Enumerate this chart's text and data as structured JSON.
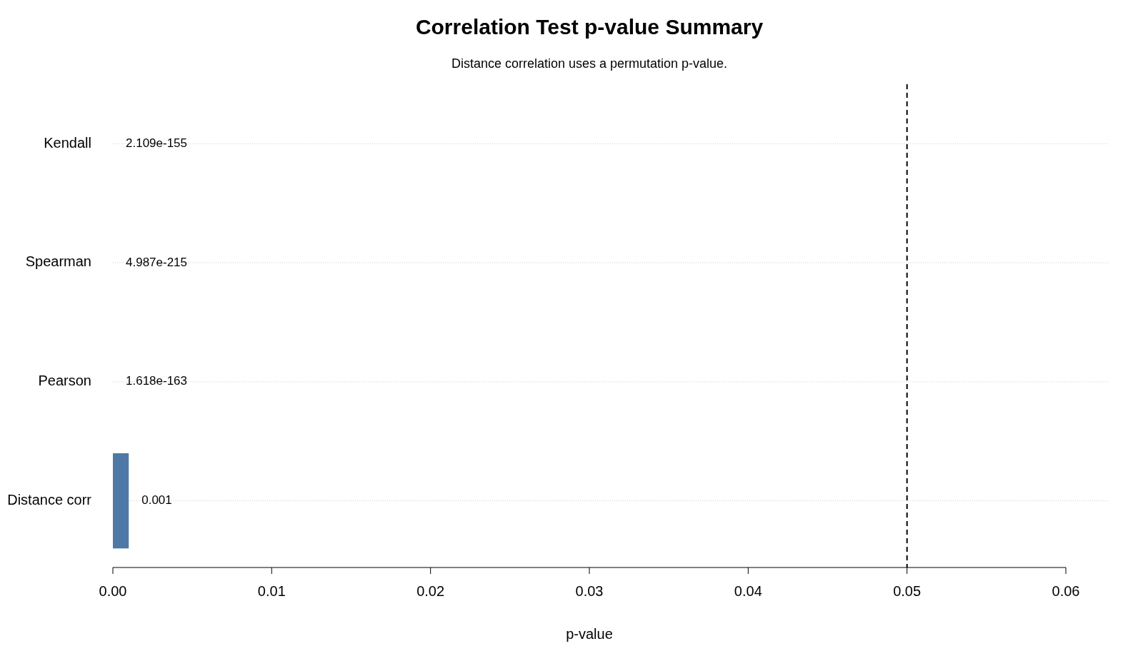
{
  "chart_data": {
    "type": "bar",
    "orientation": "horizontal",
    "title": "Correlation Test p-value Summary",
    "subtitle": "Distance correlation uses a permutation p-value.",
    "xlabel": "p-value",
    "categories": [
      "Kendall",
      "Spearman",
      "Pearson",
      "Distance corr"
    ],
    "values": [
      2.109e-155,
      4.987e-215,
      1.618e-163,
      0.001
    ],
    "value_labels": [
      "2.109e-155",
      "4.987e-215",
      "1.618e-163",
      "0.001"
    ],
    "color": "#4e79a7",
    "xlim": [
      0,
      0.06
    ],
    "xticks": [
      {
        "value": 0,
        "label": "0.00"
      },
      {
        "value": 0.01,
        "label": "0.01"
      },
      {
        "value": 0.02,
        "label": "0.02"
      },
      {
        "value": 0.03,
        "label": "0.03"
      },
      {
        "value": 0.04,
        "label": "0.04"
      },
      {
        "value": 0.05,
        "label": "0.05"
      },
      {
        "value": 0.06,
        "label": "0.06"
      }
    ],
    "ref_lines": [
      {
        "axis": "x",
        "value": 0.05,
        "line_style": "dashed",
        "color": "#000000"
      }
    ],
    "grid": "y"
  }
}
